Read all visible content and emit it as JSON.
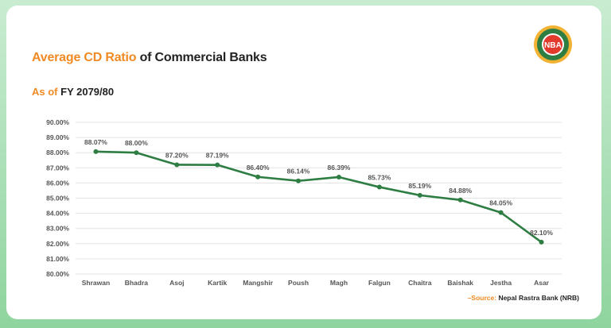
{
  "header": {
    "title_accent": "Average CD Ratio",
    "title_rest": " of Commercial Banks",
    "subtitle_accent": "As of ",
    "subtitle_rest": "FY 2079/80"
  },
  "logo": {
    "text": "NBA",
    "icon": "nba-logo-icon"
  },
  "source": {
    "prefix": "–Source: ",
    "text": "Nepal Rastra Bank (NRB)"
  },
  "colors": {
    "line": "#2e7d42",
    "accent": "#f08a24",
    "grid": "#e3e3e3"
  },
  "chart_data": {
    "type": "line",
    "title": "Average CD Ratio of Commercial Banks",
    "subtitle": "As of FY 2079/80",
    "categories": [
      "Shrawan",
      "Bhadra",
      "Asoj",
      "Kartik",
      "Mangshir",
      "Poush",
      "Magh",
      "Falgun",
      "Chaitra",
      "Baishak",
      "Jestha",
      "Asar"
    ],
    "series": [
      {
        "values": [
          88.07,
          88.0,
          87.2,
          87.19,
          86.4,
          86.14,
          86.39,
          85.73,
          85.19,
          84.88,
          84.05,
          82.1
        ],
        "labels": [
          "88.07%",
          "88.00%",
          "87.20%",
          "87.19%",
          "86.40%",
          "86.14%",
          "86.39%",
          "85.73%",
          "85.19%",
          "84.88%",
          "84.05%",
          "82.10%"
        ]
      }
    ],
    "ylim": [
      80,
      90
    ],
    "yticks": [
      "80.00%",
      "81.00%",
      "82.00%",
      "83.00%",
      "84.00%",
      "85.00%",
      "86.00%",
      "87.00%",
      "88.00%",
      "89.00%",
      "90.00%"
    ],
    "grid": true,
    "legend": "none"
  }
}
